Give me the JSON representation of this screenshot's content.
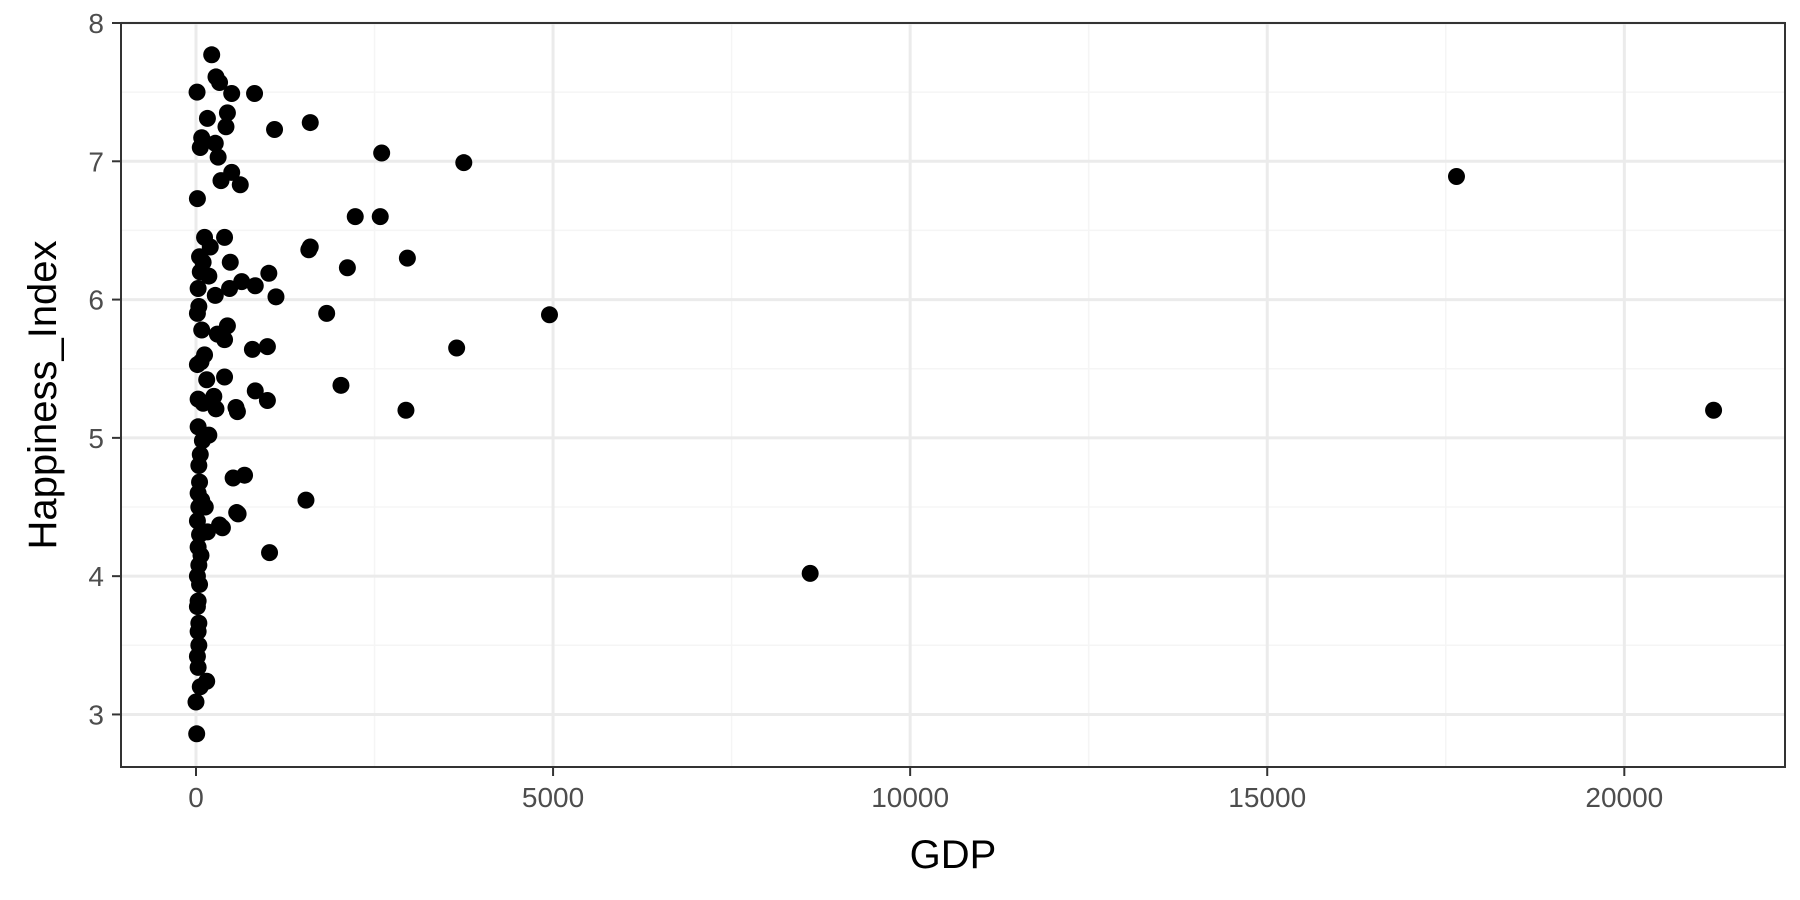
{
  "chart_data": {
    "type": "scatter",
    "title": "",
    "xlabel": "GDP",
    "ylabel": "Happiness_Index",
    "xlim": [
      -1050,
      22250
    ],
    "ylim": [
      2.62,
      8.0
    ],
    "x_ticks": [
      0,
      5000,
      10000,
      15000,
      20000
    ],
    "x_tick_labels": [
      "0",
      "5000",
      "10000",
      "15000",
      "20000"
    ],
    "y_ticks": [
      3,
      4,
      5,
      6,
      7,
      8
    ],
    "y_tick_labels": [
      "3",
      "4",
      "5",
      "6",
      "7",
      "8"
    ],
    "grid": true,
    "legend": "none",
    "colors": {
      "point": "#000000",
      "grid_major": "#ebebeb",
      "grid_minor": "#f5f5f5",
      "panel_border": "#333333",
      "background": "#ffffff"
    },
    "series": [
      {
        "points": [
          [
            220,
            7.77
          ],
          [
            15,
            7.5
          ],
          [
            280,
            7.61
          ],
          [
            330,
            7.57
          ],
          [
            500,
            7.49
          ],
          [
            820,
            7.49
          ],
          [
            160,
            7.31
          ],
          [
            440,
            7.35
          ],
          [
            1600,
            7.28
          ],
          [
            1100,
            7.23
          ],
          [
            420,
            7.25
          ],
          [
            80,
            7.17
          ],
          [
            270,
            7.13
          ],
          [
            60,
            7.1
          ],
          [
            2600,
            7.06
          ],
          [
            310,
            7.03
          ],
          [
            3750,
            6.99
          ],
          [
            500,
            6.92
          ],
          [
            350,
            6.86
          ],
          [
            620,
            6.83
          ],
          [
            20,
            6.73
          ],
          [
            17650,
            6.89
          ],
          [
            2230,
            6.6
          ],
          [
            2580,
            6.6
          ],
          [
            120,
            6.45
          ],
          [
            400,
            6.45
          ],
          [
            200,
            6.38
          ],
          [
            1580,
            6.36
          ],
          [
            1600,
            6.38
          ],
          [
            2960,
            6.3
          ],
          [
            50,
            6.31
          ],
          [
            480,
            6.27
          ],
          [
            100,
            6.27
          ],
          [
            2120,
            6.23
          ],
          [
            60,
            6.2
          ],
          [
            1020,
            6.19
          ],
          [
            180,
            6.17
          ],
          [
            640,
            6.13
          ],
          [
            830,
            6.1
          ],
          [
            470,
            6.08
          ],
          [
            30,
            6.08
          ],
          [
            1120,
            6.02
          ],
          [
            270,
            6.03
          ],
          [
            40,
            5.95
          ],
          [
            1830,
            5.9
          ],
          [
            4950,
            5.89
          ],
          [
            20,
            5.9
          ],
          [
            440,
            5.81
          ],
          [
            80,
            5.78
          ],
          [
            300,
            5.75
          ],
          [
            400,
            5.71
          ],
          [
            3650,
            5.65
          ],
          [
            1000,
            5.66
          ],
          [
            790,
            5.64
          ],
          [
            120,
            5.6
          ],
          [
            70,
            5.55
          ],
          [
            20,
            5.53
          ],
          [
            400,
            5.44
          ],
          [
            150,
            5.42
          ],
          [
            2030,
            5.38
          ],
          [
            830,
            5.34
          ],
          [
            250,
            5.3
          ],
          [
            30,
            5.28
          ],
          [
            1000,
            5.27
          ],
          [
            100,
            5.25
          ],
          [
            560,
            5.22
          ],
          [
            280,
            5.21
          ],
          [
            580,
            5.19
          ],
          [
            2940,
            5.2
          ],
          [
            21250,
            5.2
          ],
          [
            180,
            5.02
          ],
          [
            30,
            5.08
          ],
          [
            90,
            4.98
          ],
          [
            60,
            4.88
          ],
          [
            40,
            4.8
          ],
          [
            680,
            4.73
          ],
          [
            520,
            4.71
          ],
          [
            50,
            4.68
          ],
          [
            30,
            4.6
          ],
          [
            80,
            4.55
          ],
          [
            1540,
            4.55
          ],
          [
            130,
            4.5
          ],
          [
            40,
            4.5
          ],
          [
            570,
            4.46
          ],
          [
            590,
            4.45
          ],
          [
            20,
            4.4
          ],
          [
            330,
            4.37
          ],
          [
            370,
            4.35
          ],
          [
            160,
            4.32
          ],
          [
            50,
            4.3
          ],
          [
            30,
            4.21
          ],
          [
            70,
            4.15
          ],
          [
            1030,
            4.17
          ],
          [
            40,
            4.08
          ],
          [
            8600,
            4.02
          ],
          [
            20,
            4.0
          ],
          [
            50,
            3.94
          ],
          [
            30,
            3.82
          ],
          [
            20,
            3.78
          ],
          [
            40,
            3.66
          ],
          [
            30,
            3.6
          ],
          [
            40,
            3.5
          ],
          [
            20,
            3.42
          ],
          [
            30,
            3.34
          ],
          [
            150,
            3.24
          ],
          [
            60,
            3.2
          ],
          [
            0,
            3.09
          ],
          [
            10,
            2.86
          ]
        ]
      }
    ]
  }
}
